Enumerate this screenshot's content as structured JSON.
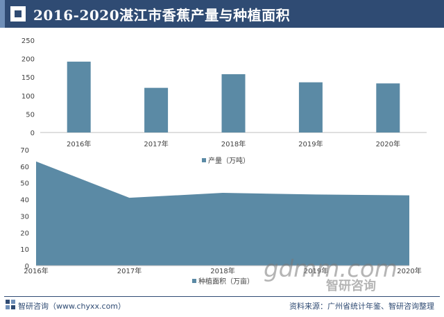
{
  "header": {
    "title": "2016-2020湛江市香蕉产量与种植面积"
  },
  "chart_data": [
    {
      "type": "bar",
      "categories": [
        "2016年",
        "2017年",
        "2018年",
        "2019年",
        "2020年"
      ],
      "series": [
        {
          "name": "产量（万吨）",
          "values": [
            192,
            121,
            158,
            136,
            133
          ]
        }
      ],
      "ylim": [
        0,
        250
      ],
      "yticks": [
        0,
        50,
        100,
        150,
        200,
        250
      ],
      "legend_position": "bottom",
      "color": "#5b8aa5"
    },
    {
      "type": "area",
      "categories": [
        "2016年",
        "2017年",
        "2018年",
        "2019年",
        "2020年"
      ],
      "series": [
        {
          "name": "种植面积（万亩）",
          "values": [
            63,
            41,
            44,
            43,
            42.5
          ]
        }
      ],
      "ylim": [
        0,
        70
      ],
      "yticks": [
        0,
        10,
        20,
        30,
        40,
        50,
        60,
        70
      ],
      "legend_position": "bottom",
      "color": "#5b8aa5"
    }
  ],
  "footer": {
    "left": "智研咨询（www.chyxx.com）",
    "right": "资料来源：广州省统计年鉴、智研咨询整理"
  },
  "watermark": {
    "url": "gdmm.com",
    "brand": "智研咨询"
  }
}
